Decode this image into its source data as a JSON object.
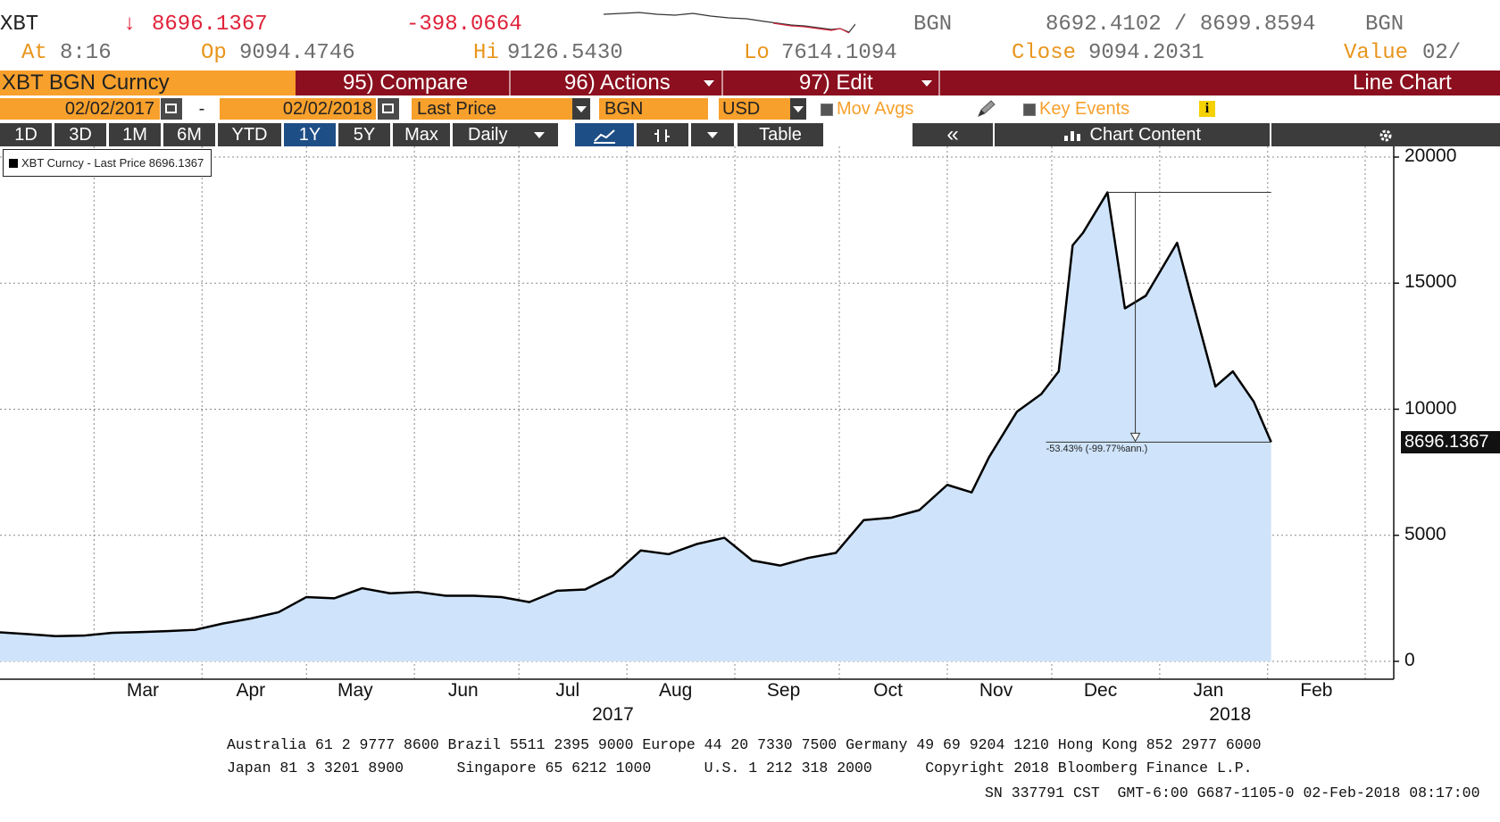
{
  "quote": {
    "ticker": "XBT",
    "arrow": "↓",
    "last": "8696.1367",
    "change": "-398.0664",
    "currency_left": "BGN",
    "bid_ask": "8692.4102 / 8699.8594",
    "currency_right": "BGN",
    "at_label": "At",
    "at_value": "8:16",
    "op_label": "Op",
    "op_value": "9094.4746",
    "hi_label": "Hi",
    "hi_value": "9126.5430",
    "lo_label": "Lo",
    "lo_value": "7614.1094",
    "close_label": "Close",
    "close_value": "9094.2031",
    "value_label": "Value",
    "value_value": "02/"
  },
  "toolbar1": {
    "security": "XBT BGN Curncy",
    "compare": "95) Compare",
    "actions": "96) Actions",
    "edit": "97) Edit",
    "chart_type": "Line Chart"
  },
  "toolbar2": {
    "start_date": "02/02/2017",
    "dash": "-",
    "end_date": "02/02/2018",
    "field": "Last Price",
    "currency": "BGN",
    "compare_currency": "USD",
    "mov_avgs": "Mov Avgs",
    "key_events": "Key Events",
    "info_icon_text": "i"
  },
  "toolbar3": {
    "periods": [
      "1D",
      "3D",
      "1M",
      "6M",
      "YTD",
      "1Y",
      "5Y",
      "Max"
    ],
    "active_period": "1Y",
    "frequency": "Daily",
    "table": "Table",
    "collapse": "«",
    "chart_content": "Chart Content"
  },
  "colors": {
    "accent_orange": "#f7a02c",
    "toolbar_red": "#8b0f1e",
    "down_red": "#e0213a",
    "area_fill": "#cfe4fb",
    "line": "#000000"
  },
  "legend": "XBT Curncy - Last Price 8696.1367",
  "price_tag": "8696.1367",
  "annotation": "-53.43% (-99.77%ann.)",
  "chart_data": {
    "type": "area",
    "ylim": [
      0,
      20000
    ],
    "y_ticks": [
      "20000",
      "15000",
      "10000",
      "5000",
      "0"
    ],
    "x_months": [
      "Mar",
      "Apr",
      "May",
      "Jun",
      "Jul",
      "Aug",
      "Sep",
      "Oct",
      "Nov",
      "Dec",
      "Jan",
      "Feb"
    ],
    "x_years": [
      "2017",
      "2018"
    ],
    "x": [
      "2017-02-02",
      "2017-02-10",
      "2017-02-18",
      "2017-02-26",
      "2017-03-06",
      "2017-03-14",
      "2017-03-22",
      "2017-03-30",
      "2017-04-07",
      "2017-04-15",
      "2017-04-23",
      "2017-05-01",
      "2017-05-09",
      "2017-05-17",
      "2017-05-25",
      "2017-06-02",
      "2017-06-10",
      "2017-06-18",
      "2017-06-26",
      "2017-07-04",
      "2017-07-12",
      "2017-07-20",
      "2017-07-28",
      "2017-08-05",
      "2017-08-13",
      "2017-08-21",
      "2017-08-29",
      "2017-09-06",
      "2017-09-14",
      "2017-09-22",
      "2017-09-30",
      "2017-10-08",
      "2017-10-16",
      "2017-10-24",
      "2017-11-01",
      "2017-11-08",
      "2017-11-13",
      "2017-11-21",
      "2017-11-28",
      "2017-12-03",
      "2017-12-07",
      "2017-12-10",
      "2017-12-17",
      "2017-12-22",
      "2017-12-28",
      "2018-01-06",
      "2018-01-10",
      "2018-01-17",
      "2018-01-22",
      "2018-01-28",
      "2018-02-02"
    ],
    "values": [
      1150,
      1080,
      1000,
      1020,
      1130,
      1160,
      1200,
      1250,
      1500,
      1700,
      1950,
      2550,
      2500,
      2900,
      2700,
      2750,
      2600,
      2600,
      2550,
      2350,
      2800,
      2850,
      3400,
      4400,
      4250,
      4650,
      4900,
      4000,
      3800,
      4100,
      4300,
      5600,
      5700,
      6000,
      7000,
      6700,
      8100,
      9900,
      10600,
      11500,
      16500,
      17000,
      18600,
      14000,
      14500,
      16600,
      14500,
      10900,
      11500,
      10300,
      8696
    ]
  }
}
